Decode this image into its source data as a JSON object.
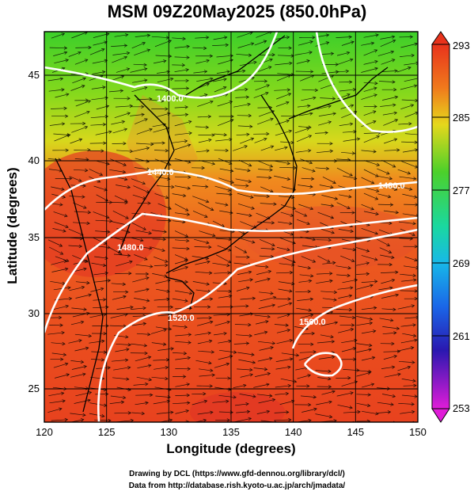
{
  "title": "MSM 09Z20May2025 (850.0hPa)",
  "xlabel": "Longitude (degrees)",
  "ylabel": "Latitude  (degrees)",
  "x_ticks": [
    "120",
    "125",
    "130",
    "135",
    "140",
    "145",
    "150"
  ],
  "y_ticks": [
    "25",
    "30",
    "35",
    "40",
    "45"
  ],
  "colorbar_ticks": [
    "293",
    "285",
    "277",
    "269",
    "261",
    "253"
  ],
  "contour_labels": [
    "1400.0",
    "1440.0",
    "1480.0",
    "1480.0",
    "1520.0",
    "1560.0"
  ],
  "credits": {
    "line1": "Drawing by DCL (https://www.gfd-dennou.org/library/dcl/)",
    "line2": "Data from http://database.rish.kyoto-u.ac.jp/arch/jmadata/"
  },
  "map_data": {
    "lon_range": [
      120,
      150
    ],
    "lat_range": [
      22.4,
      47.6
    ],
    "colorbar_range": [
      253,
      293
    ],
    "colors": {
      "warm": "#e8431e",
      "mid": "#f07a1c",
      "cool": "#8ed21f",
      "cold": "#2fc92d",
      "contour": "#ffffff"
    }
  }
}
